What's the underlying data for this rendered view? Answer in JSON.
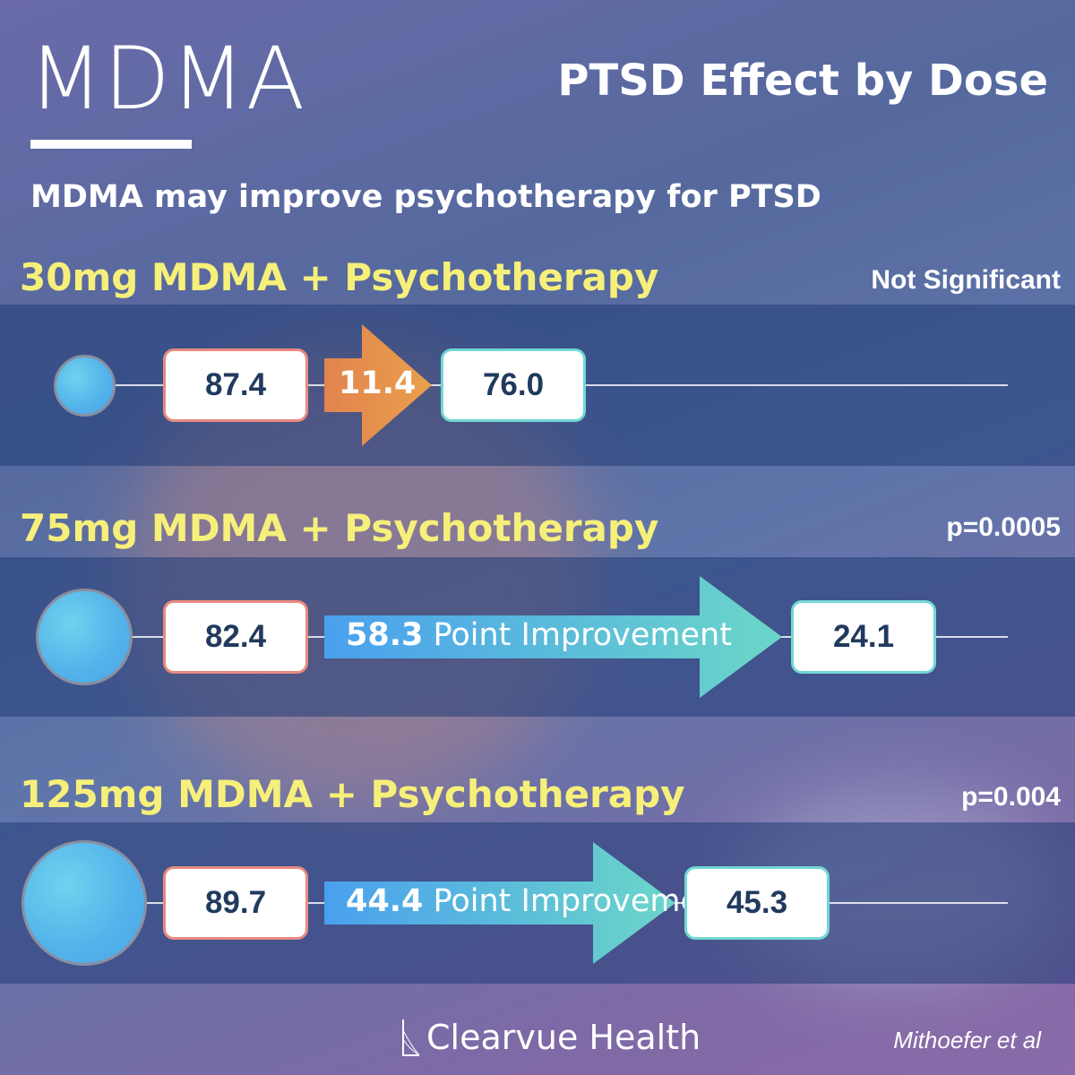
{
  "header": {
    "title": "MDMA",
    "heading": "PTSD Effect by Dose",
    "subtitle": "MDMA may improve psychotherapy for PTSD"
  },
  "colors": {
    "before_border": "#e98a80",
    "after_border": "#72d8d3",
    "group_title": "#f6f07a",
    "nonsig_arrow": "#e88a4a",
    "sig_arrow_start": "#4aa0ee",
    "sig_arrow_end": "#6bd6c8"
  },
  "chart_data": {
    "type": "bar",
    "groups": [
      {
        "title": "30mg MDMA + Psychotherapy",
        "dose_mg": 30,
        "significance": "Not Significant",
        "before": "87.4",
        "after": "76.0",
        "improvement": "11.4",
        "improvement_suffix": ""
      },
      {
        "title": "75mg MDMA + Psychotherapy",
        "dose_mg": 75,
        "significance": "p=0.0005",
        "before": "82.4",
        "after": "24.1",
        "improvement": "58.3",
        "improvement_suffix": " Point Improvement"
      },
      {
        "title": "125mg MDMA + Psychotherapy",
        "dose_mg": 125,
        "significance": "p=0.004",
        "before": "89.7",
        "after": "45.3",
        "improvement": "44.4",
        "improvement_suffix": " Point Improvement"
      }
    ]
  },
  "footer": {
    "brand": "Clearvue Health",
    "credit": "Mithoefer et al"
  }
}
